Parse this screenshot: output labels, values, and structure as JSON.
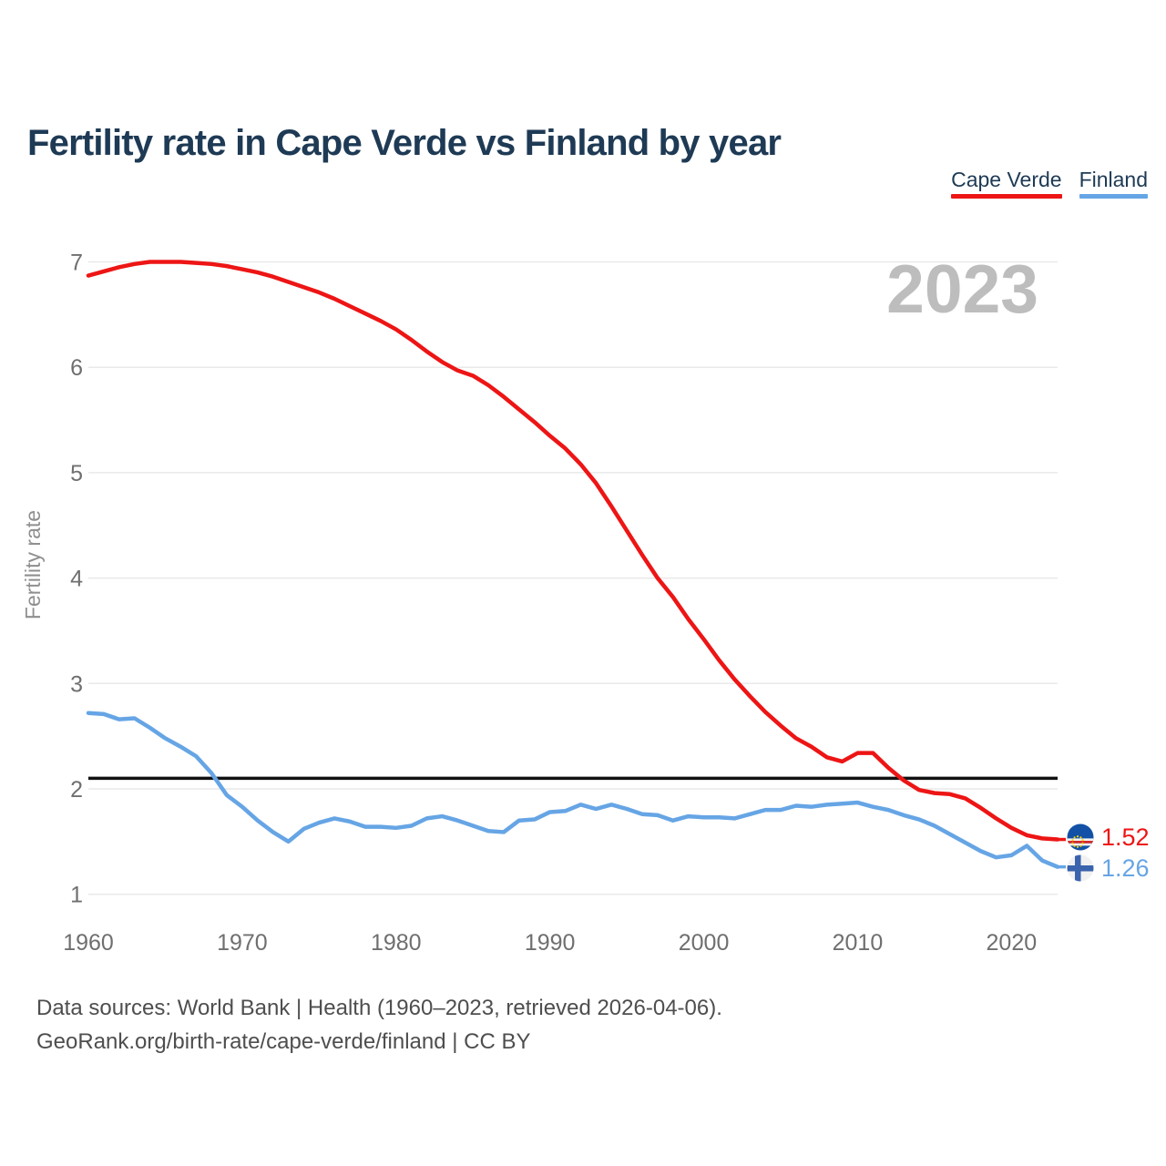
{
  "page": {
    "title": "Fertility rate in Cape Verde vs Finland by year",
    "watermark_year": "2023"
  },
  "legend": {
    "items": [
      {
        "label": "Cape Verde",
        "color": "#ed1515"
      },
      {
        "label": "Finland",
        "color": "#66a5e5"
      }
    ]
  },
  "axes": {
    "y_title": "Fertility rate",
    "y_ticks": [
      1,
      2,
      3,
      4,
      5,
      6,
      7
    ],
    "x_ticks": [
      1960,
      1970,
      1980,
      1990,
      2000,
      2010,
      2020
    ]
  },
  "end_labels": {
    "items": [
      {
        "series": "Cape Verde",
        "value": "1.52",
        "icon": "cape-verde-flag",
        "color": "#ed1515"
      },
      {
        "series": "Finland",
        "value": "1.26",
        "icon": "finland-flag",
        "color": "#66a5e5"
      }
    ]
  },
  "footer": {
    "line1": "Data sources: World Bank | Health (1960–2023, retrieved 2026-04-06).",
    "line2": "GeoRank.org/birth-rate/cape-verde/finland | CC BY"
  },
  "colors": {
    "title_navy": "#1e3a55",
    "cape_verde_red": "#ed1515",
    "finland_blue": "#66a5e5",
    "reference_black": "#111111",
    "gridline": "#e9e9e9",
    "tick_gray": "#6f6f6f",
    "axis_title_gray": "#8f8f8f",
    "watermark_gray": "#bdbdbd",
    "footer_gray": "#4e4e4e"
  },
  "chart_data": {
    "type": "line",
    "title": "Fertility rate in Cape Verde vs Finland by year",
    "xlabel": "",
    "ylabel": "Fertility rate",
    "xlim": [
      1960,
      2023
    ],
    "ylim": [
      1,
      7
    ],
    "grid": true,
    "legend_position": "top-right",
    "watermark": "2023",
    "reference_line": {
      "value": 2.1,
      "color": "#111111"
    },
    "x": [
      1960,
      1961,
      1962,
      1963,
      1964,
      1965,
      1966,
      1967,
      1968,
      1969,
      1970,
      1971,
      1972,
      1973,
      1974,
      1975,
      1976,
      1977,
      1978,
      1979,
      1980,
      1981,
      1982,
      1983,
      1984,
      1985,
      1986,
      1987,
      1988,
      1989,
      1990,
      1991,
      1992,
      1993,
      1994,
      1995,
      1996,
      1997,
      1998,
      1999,
      2000,
      2001,
      2002,
      2003,
      2004,
      2005,
      2006,
      2007,
      2008,
      2009,
      2010,
      2011,
      2012,
      2013,
      2014,
      2015,
      2016,
      2017,
      2018,
      2019,
      2020,
      2021,
      2022,
      2023
    ],
    "series": [
      {
        "name": "Cape Verde",
        "color": "#ed1515",
        "end_value": 1.52,
        "values": [
          6.87,
          6.91,
          6.95,
          6.98,
          7.0,
          7.0,
          7.0,
          6.99,
          6.98,
          6.96,
          6.93,
          6.9,
          6.86,
          6.81,
          6.76,
          6.71,
          6.65,
          6.58,
          6.51,
          6.44,
          6.36,
          6.26,
          6.15,
          6.05,
          5.97,
          5.92,
          5.83,
          5.72,
          5.6,
          5.48,
          5.35,
          5.23,
          5.08,
          4.9,
          4.68,
          4.45,
          4.22,
          4.0,
          3.82,
          3.61,
          3.42,
          3.22,
          3.04,
          2.88,
          2.73,
          2.6,
          2.48,
          2.4,
          2.3,
          2.26,
          2.34,
          2.34,
          2.2,
          2.08,
          1.99,
          1.96,
          1.95,
          1.91,
          1.82,
          1.72,
          1.63,
          1.56,
          1.53,
          1.52
        ]
      },
      {
        "name": "Finland",
        "color": "#66a5e5",
        "end_value": 1.26,
        "values": [
          2.72,
          2.71,
          2.66,
          2.67,
          2.58,
          2.48,
          2.4,
          2.31,
          2.15,
          1.94,
          1.83,
          1.7,
          1.59,
          1.5,
          1.62,
          1.68,
          1.72,
          1.69,
          1.64,
          1.64,
          1.63,
          1.65,
          1.72,
          1.74,
          1.7,
          1.65,
          1.6,
          1.59,
          1.7,
          1.71,
          1.78,
          1.79,
          1.85,
          1.81,
          1.85,
          1.81,
          1.76,
          1.75,
          1.7,
          1.74,
          1.73,
          1.73,
          1.72,
          1.76,
          1.8,
          1.8,
          1.84,
          1.83,
          1.85,
          1.86,
          1.87,
          1.83,
          1.8,
          1.75,
          1.71,
          1.65,
          1.57,
          1.49,
          1.41,
          1.35,
          1.37,
          1.46,
          1.32,
          1.26
        ]
      }
    ]
  }
}
